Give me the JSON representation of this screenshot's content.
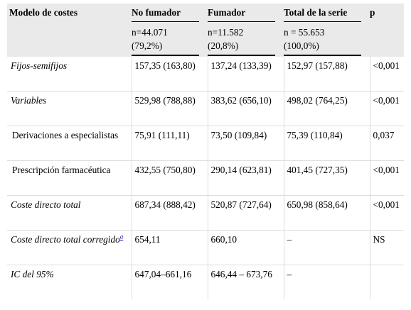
{
  "header": {
    "model": "Modelo de costes",
    "no_fumador": "No fumador",
    "fumador": "Fumador",
    "total": "Total de la serie",
    "p": "p"
  },
  "subheader": {
    "no_fumador": "n=44.071 (79,2%)",
    "fumador": "n=11.582 (20,8%)",
    "total": "n = 55.653 (100,0%)"
  },
  "rows": [
    {
      "model": "Fijos-semifijos",
      "no_fumador": "157,35 (163,80)",
      "fumador": "137,24 (133,39)",
      "total": "152,97 (157,88)",
      "p": "<0,001"
    },
    {
      "model": "Variables",
      "no_fumador": "529,98 (788,88)",
      "fumador": "383,62 (656,10)",
      "total": "498,02 (764,25)",
      "p": "<0,001"
    },
    {
      "model": "Derivaciones a especialistas",
      "no_fumador": "75,91 (111,11)",
      "fumador": "73,50 (109,84)",
      "total": "75,39 (110,84)",
      "p": "0,037"
    },
    {
      "model": "Prescripción farmacéutica",
      "no_fumador": "432,55 (750,80)",
      "fumador": "290,14 (623,81)",
      "total": "401,45 (727,35)",
      "p": "<0,001"
    },
    {
      "model": "Coste directo total",
      "no_fumador": "687,34 (888,42)",
      "fumador": "520,87 (727,64)",
      "total": "650,98 (858,64)",
      "p": "<0,001"
    },
    {
      "model": "Coste directo total corregido",
      "model_note": "a",
      "no_fumador": "654,11",
      "fumador": "660,10",
      "total": "–",
      "p": "NS"
    },
    {
      "model": "IC del 95%",
      "no_fumador": "647,04–661,16",
      "fumador": "646,44 – 673,76",
      "total": "–",
      "p": ""
    }
  ]
}
